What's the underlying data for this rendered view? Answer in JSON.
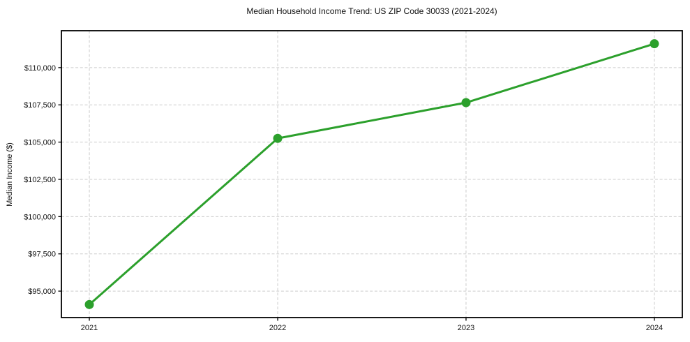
{
  "title": "Median Household Income Trend: US ZIP Code 30033 (2021-2024)",
  "colors": {
    "line": "#2ca02c",
    "marker": "#2ca02c",
    "grid": "#cccccc",
    "spine": "#000000",
    "text": "#111111"
  },
  "chart_data": {
    "type": "line",
    "title": "Median Household Income Trend: US ZIP Code 30033 (2021-2024)",
    "xlabel": "",
    "ylabel": "Median Income ($)",
    "categories": [
      "2021",
      "2022",
      "2023",
      "2024"
    ],
    "series": [
      {
        "name": "Median Household Income",
        "values": [
          94100,
          105250,
          107650,
          111600
        ]
      }
    ],
    "yticks": [
      95000,
      97500,
      100000,
      102500,
      105000,
      107500,
      110000
    ],
    "ytick_labels": [
      "$95,000",
      "$97,500",
      "$100,000",
      "$102,500",
      "$105,000",
      "$107,500",
      "$110,000"
    ],
    "ylim": [
      93225,
      112475
    ],
    "grid": true,
    "grid_style": "dashed",
    "legend": "none",
    "marker": "circle"
  }
}
